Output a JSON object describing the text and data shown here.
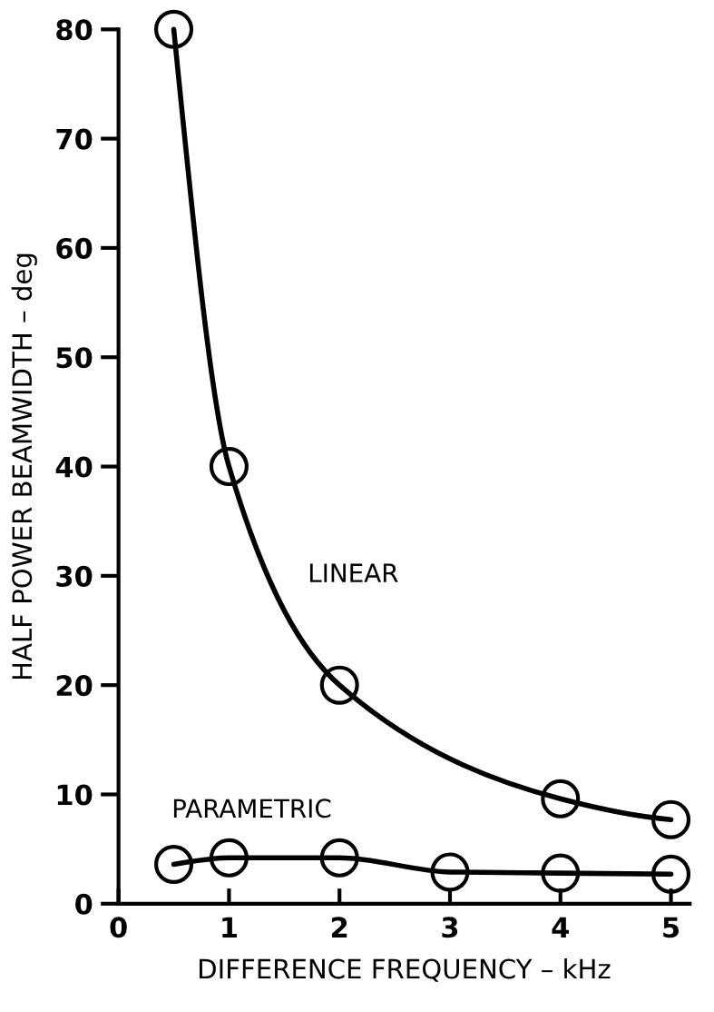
{
  "chart_data": {
    "type": "line",
    "xlabel": "DIFFERENCE FREQUENCY – kHz",
    "ylabel": "HALF POWER BEAMWIDTH – deg",
    "xlim": [
      0,
      5.17
    ],
    "ylim": [
      0,
      80
    ],
    "xticks": [
      0,
      1,
      2,
      3,
      4,
      5
    ],
    "yticks": [
      0,
      10,
      20,
      30,
      40,
      50,
      60,
      70,
      80
    ],
    "grid": false,
    "marker": "circle",
    "line_style": "solid",
    "series": [
      {
        "name": "LINEAR",
        "color": "#000000",
        "x": [
          0.5,
          1,
          2,
          4,
          5
        ],
        "values": [
          80,
          40,
          20,
          9.6,
          7.7
        ]
      },
      {
        "name": "PARAMETRIC",
        "color": "#000000",
        "x": [
          0.5,
          1,
          2,
          3,
          4,
          5
        ],
        "values": [
          3.6,
          4.2,
          4.2,
          2.9,
          2.8,
          2.7
        ]
      }
    ]
  }
}
